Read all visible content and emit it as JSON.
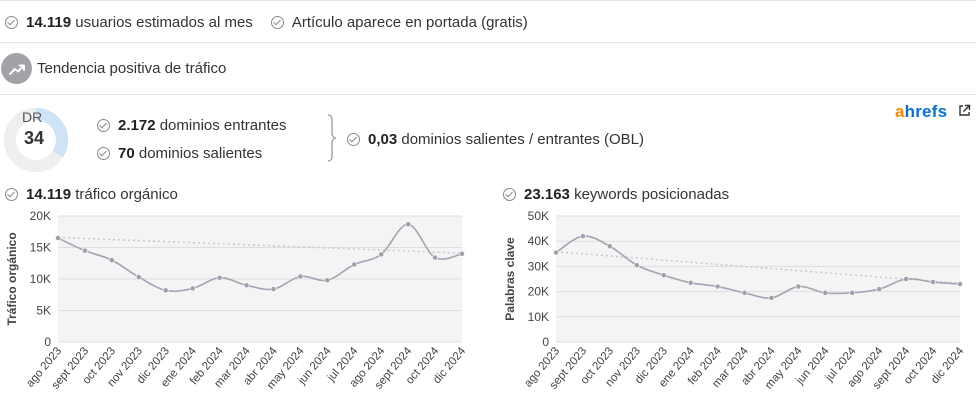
{
  "stats": {
    "users_value": "14.119",
    "users_label": "usuarios estimados al mes",
    "portada_label": "Artículo aparece en portada (gratis)"
  },
  "trend": {
    "label": "Tendencia positiva de tráfico",
    "icon": "trending-up-icon"
  },
  "dr": {
    "label": "DR",
    "value": "34",
    "fraction": 0.34
  },
  "domains": {
    "incoming_value": "2.172",
    "incoming_label": "dominios entrantes",
    "outgoing_value": "70",
    "outgoing_label": "dominios salientes",
    "obl_value": "0,03",
    "obl_label": "dominios salientes / entrantes (OBL)"
  },
  "brand": {
    "a": "a",
    "rest": "hrefs",
    "icon": "external-link-icon"
  },
  "traffic": {
    "value": "14.119",
    "label": "tráfico orgánico"
  },
  "keywords": {
    "value": "23.163",
    "label": "keywords posicionadas"
  },
  "colors": {
    "accent_blue": "#cfe3f6",
    "brand_orange": "#ff8800",
    "brand_blue": "#0a6fd3",
    "line": "#a3a3b3"
  },
  "chart_data": [
    {
      "type": "line",
      "title": "",
      "xlabel": "",
      "ylabel": "Tráfico orgánico",
      "categories": [
        "ago 2023",
        "sept 2023",
        "oct 2023",
        "nov 2023",
        "dic 2023",
        "ene 2024",
        "feb 2024",
        "mar 2024",
        "abr 2024",
        "may 2024",
        "jun 2024",
        "jul 2024",
        "ago 2024",
        "sept 2024",
        "oct 2024",
        "dic 2024"
      ],
      "values": [
        16500,
        14500,
        13000,
        10300,
        8200,
        8500,
        10200,
        9000,
        8400,
        10400,
        9800,
        12300,
        13900,
        18700,
        13400,
        14000
      ],
      "ylim": [
        0,
        20000
      ],
      "yticks": [
        "0",
        "5K",
        "10K",
        "15K",
        "20K"
      ],
      "trend": [
        16600,
        14100
      ],
      "grid": true,
      "legend": "none"
    },
    {
      "type": "line",
      "title": "",
      "xlabel": "",
      "ylabel": "Palabras clave",
      "categories": [
        "ago 2023",
        "sept 2023",
        "oct 2023",
        "nov 2023",
        "dic 2023",
        "ene 2024",
        "feb 2024",
        "mar 2024",
        "abr 2024",
        "may 2024",
        "jun 2024",
        "jul 2024",
        "ago 2024",
        "sept 2024",
        "oct 2024",
        "dic 2024"
      ],
      "values": [
        35500,
        42000,
        38000,
        30500,
        26500,
        23500,
        22000,
        19500,
        17500,
        22000,
        19500,
        19500,
        21000,
        25000,
        23800,
        23000
      ],
      "ylim": [
        0,
        50000
      ],
      "yticks": [
        "0",
        "10K",
        "20K",
        "30K",
        "40K",
        "50K"
      ],
      "trend": [
        35800,
        23300
      ],
      "grid": true,
      "legend": "none"
    }
  ]
}
